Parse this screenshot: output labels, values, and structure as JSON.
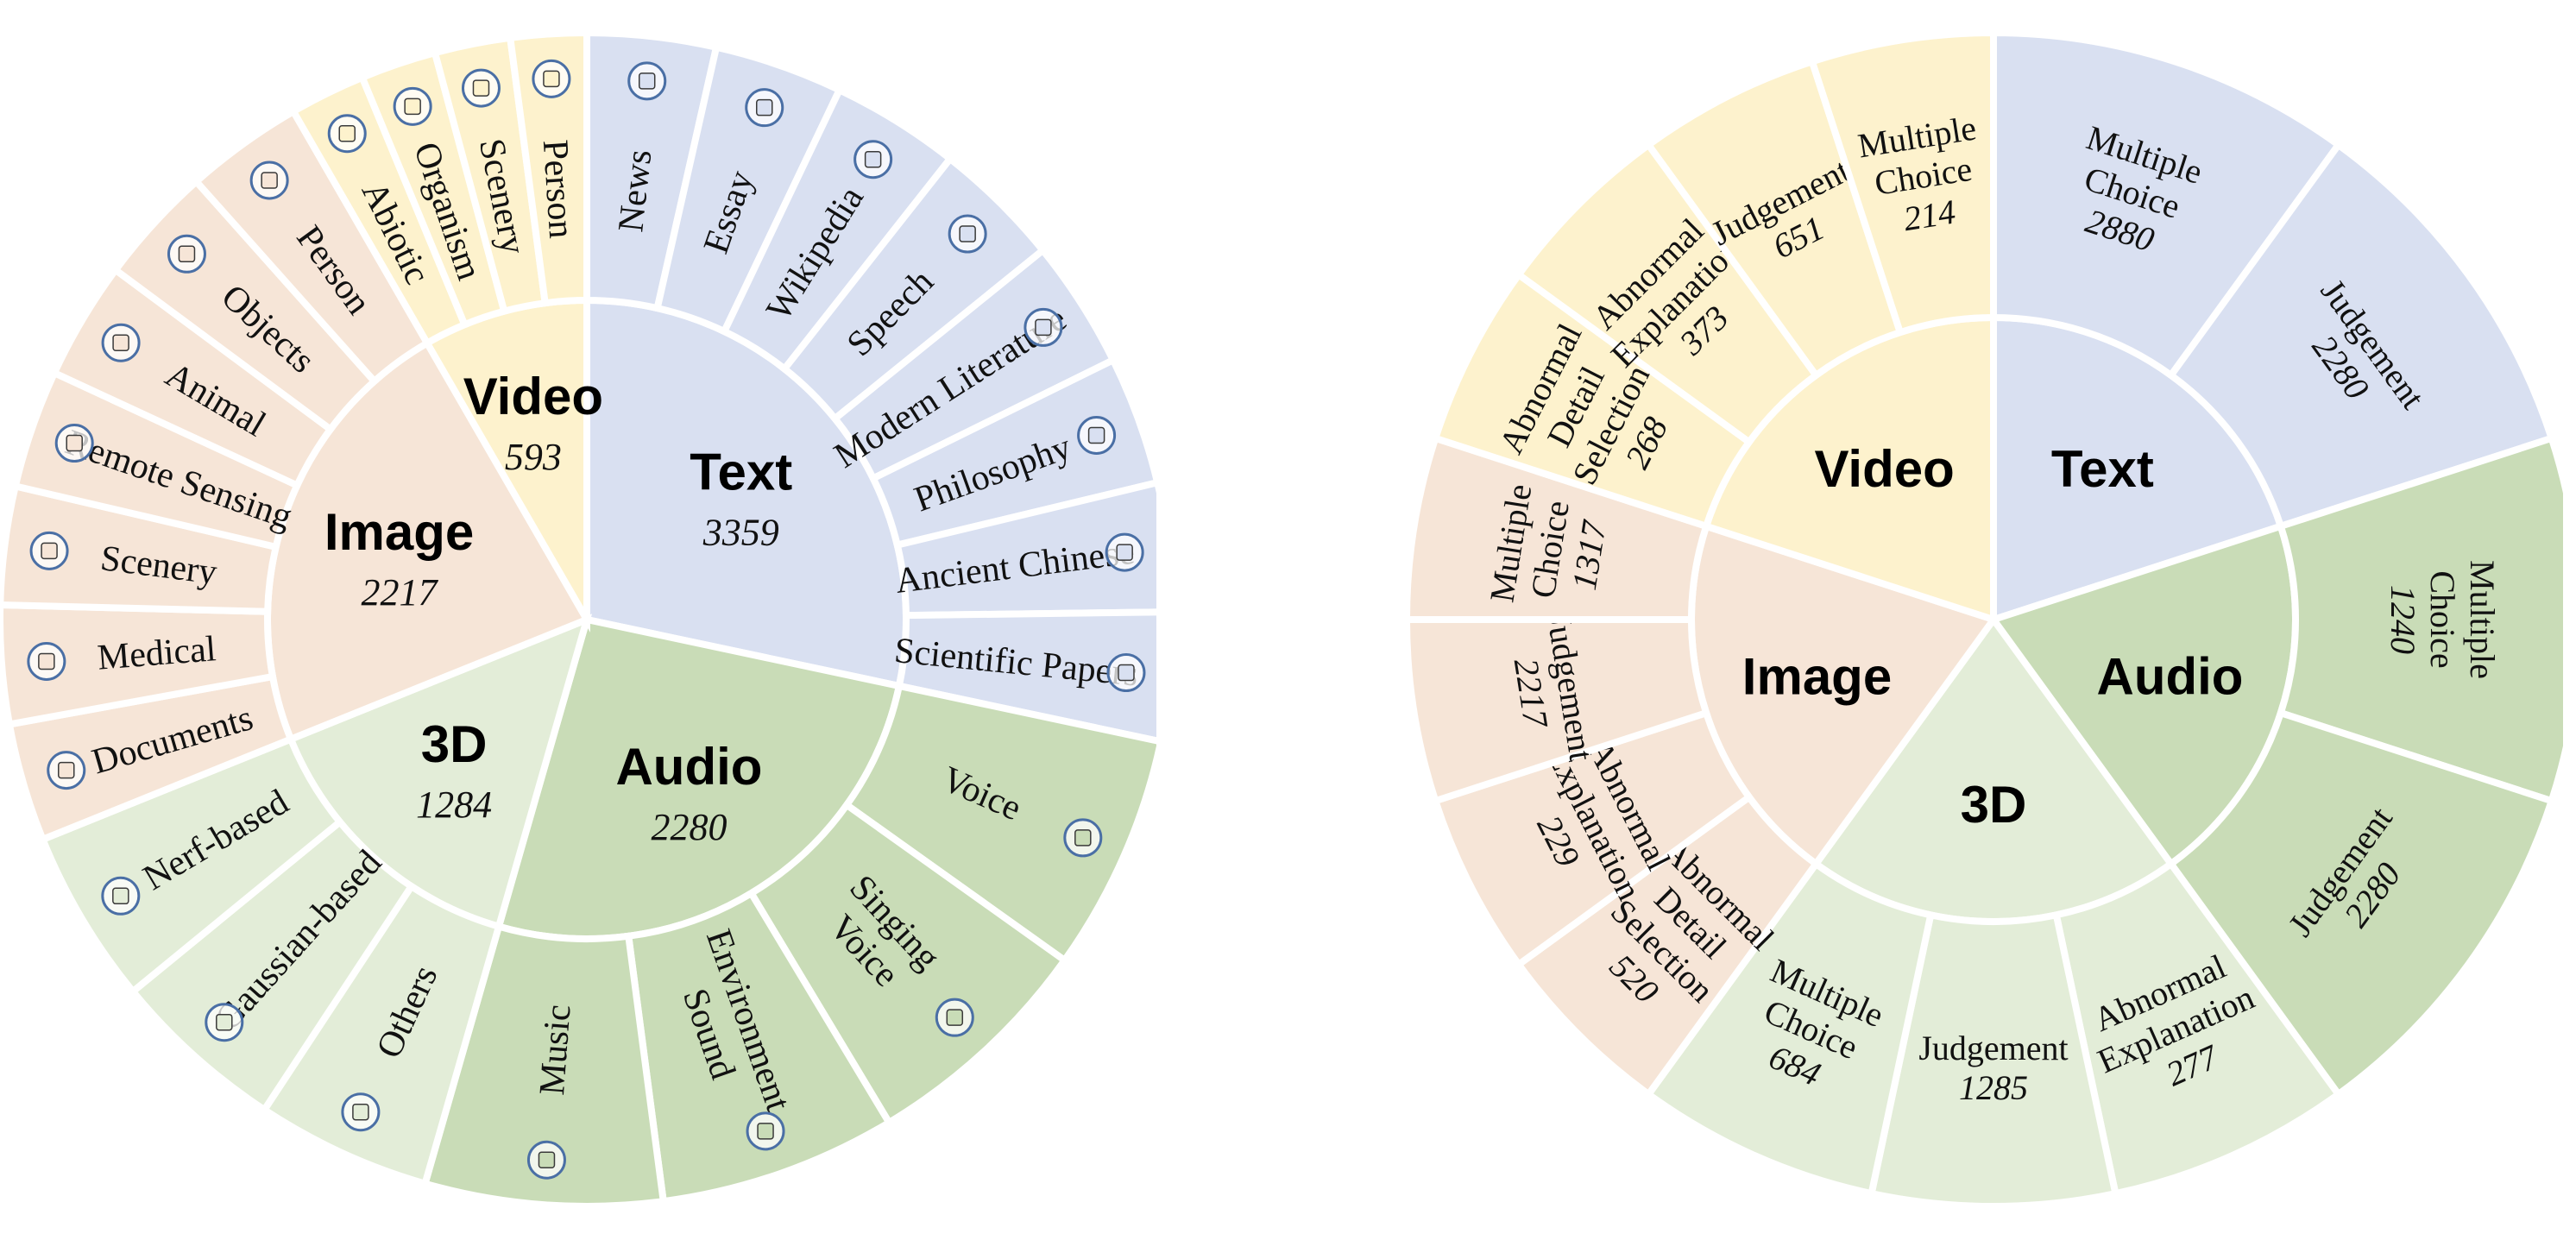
{
  "colors": {
    "text": "#d9e0f1",
    "audio": "#c9dcb7",
    "threed": "#e3edd8",
    "image": "#f6e5d7",
    "video": "#fdf2cd",
    "separator": "#ffffff",
    "label": "#111111"
  },
  "chart_data": [
    {
      "type": "sunburst",
      "groups": [
        {
          "key": "text",
          "name": "Text",
          "value": 3359,
          "children": [
            {
              "name": "News",
              "icon": "newspaper-icon"
            },
            {
              "name": "Essay",
              "icon": "pencil-icon"
            },
            {
              "name": "Wikipedia",
              "icon": "book-icon"
            },
            {
              "name": "Speech",
              "icon": "podium-icon"
            },
            {
              "name": "Modern Literature",
              "icon": "literature-book-icon"
            },
            {
              "name": "Philosophy",
              "icon": "bookshelf-icon"
            },
            {
              "name": "Ancient Chinese",
              "icon": "bamboo-scroll-icon"
            },
            {
              "name": "Scientific Papers",
              "icon": "microscope-icon"
            }
          ]
        },
        {
          "key": "audio",
          "name": "Audio",
          "value": 2280,
          "children": [
            {
              "name": "Voice",
              "icon": "voice-wave-icon"
            },
            {
              "name": "Singing Voice",
              "icon": "headphones-icon"
            },
            {
              "name": "Environment Sound",
              "icon": "tree-icon"
            },
            {
              "name": "Music",
              "icon": "music-note-icon"
            }
          ]
        },
        {
          "key": "threed",
          "name": "3D",
          "value": 1284,
          "children": [
            {
              "name": "Others",
              "icon": "blocks-icon"
            },
            {
              "name": "Gaussian-based",
              "icon": "gaussian-mesh-icon"
            },
            {
              "name": "Nerf-based",
              "icon": "excavator-icon"
            }
          ]
        },
        {
          "key": "image",
          "name": "Image",
          "value": 2217,
          "children": [
            {
              "name": "Documents",
              "icon": "document-icon"
            },
            {
              "name": "Medical",
              "icon": "medical-icon"
            },
            {
              "name": "Scenery",
              "icon": "mountain-icon"
            },
            {
              "name": "Remote Sensing",
              "icon": "globe-icon"
            },
            {
              "name": "Animal",
              "icon": "dog-icon"
            },
            {
              "name": "Objects",
              "icon": "chair-icon"
            },
            {
              "name": "Person",
              "icon": "person-portrait-icon"
            }
          ]
        },
        {
          "key": "video",
          "name": "Video",
          "value": 593,
          "children": [
            {
              "name": "Abiotic",
              "icon": "atom-icon"
            },
            {
              "name": "Organism",
              "icon": "dna-icon"
            },
            {
              "name": "Scenery",
              "icon": "landscape-icon"
            },
            {
              "name": "Person",
              "icon": "runner-icon"
            }
          ]
        }
      ]
    },
    {
      "type": "sunburst",
      "groups": [
        {
          "key": "text",
          "name": "Text",
          "children": [
            {
              "name": "Multiple Choice",
              "value": 2880
            },
            {
              "name": "Judgement",
              "value": 2280
            }
          ]
        },
        {
          "key": "audio",
          "name": "Audio",
          "children": [
            {
              "name": "Multiple Choice",
              "value": 1240
            },
            {
              "name": "Judgement",
              "value": 2280
            }
          ]
        },
        {
          "key": "threed",
          "name": "3D",
          "children": [
            {
              "name": "Abnormal Explanation",
              "value": 277
            },
            {
              "name": "Judgement",
              "value": 1285
            },
            {
              "name": "Multiple Choice",
              "value": 684
            }
          ]
        },
        {
          "key": "image",
          "name": "Image",
          "children": [
            {
              "name": "Abnormal Detail Selection",
              "value": 520
            },
            {
              "name": "Abnormal Explanation",
              "value": 229
            },
            {
              "name": "Judgement",
              "value": 2217
            },
            {
              "name": "Multiple Choice",
              "value": 1317
            }
          ]
        },
        {
          "key": "video",
          "name": "Video",
          "children": [
            {
              "name": "Abnormal Detail Selection",
              "value": 268
            },
            {
              "name": "Abnormal Explanation",
              "value": 373
            },
            {
              "name": "Judgement",
              "value": 651
            },
            {
              "name": "Multiple Choice",
              "value": 214
            }
          ]
        }
      ]
    }
  ]
}
